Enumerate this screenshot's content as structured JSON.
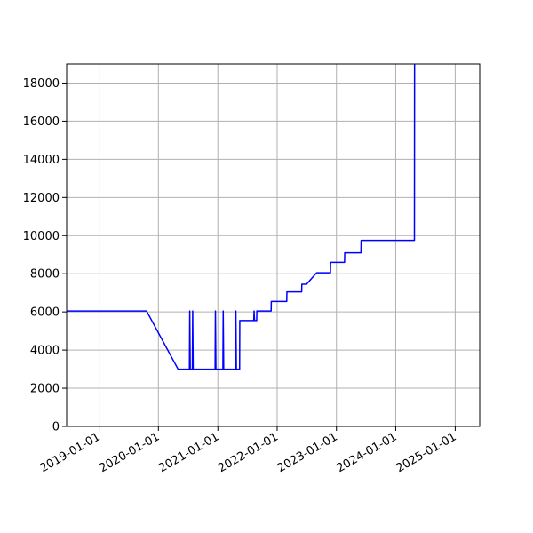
{
  "chart_data": {
    "type": "line",
    "title": "",
    "xlabel": "",
    "ylabel": "",
    "x_axis": {
      "type": "date",
      "range": [
        "2018-06-15",
        "2025-06-01"
      ]
    },
    "y_axis": {
      "range": [
        0,
        19000
      ]
    },
    "grid": true,
    "colors": {
      "line": "#0000ff",
      "grid": "#b0b0b0",
      "axis": "#000000"
    },
    "x_ticks": [
      {
        "value": "2019-01-01",
        "label": "2019-01-01"
      },
      {
        "value": "2020-01-01",
        "label": "2020-01-01"
      },
      {
        "value": "2021-01-01",
        "label": "2021-01-01"
      },
      {
        "value": "2022-01-01",
        "label": "2022-01-01"
      },
      {
        "value": "2023-01-01",
        "label": "2023-01-01"
      },
      {
        "value": "2024-01-01",
        "label": "2024-01-01"
      },
      {
        "value": "2025-01-01",
        "label": "2025-01-01"
      }
    ],
    "y_ticks": [
      {
        "value": 0,
        "label": "0"
      },
      {
        "value": 2000,
        "label": "2000"
      },
      {
        "value": 4000,
        "label": "4000"
      },
      {
        "value": 6000,
        "label": "6000"
      },
      {
        "value": 8000,
        "label": "8000"
      },
      {
        "value": 10000,
        "label": "10000"
      },
      {
        "value": 12000,
        "label": "12000"
      },
      {
        "value": 14000,
        "label": "14000"
      },
      {
        "value": 16000,
        "label": "16000"
      },
      {
        "value": 18000,
        "label": "18000"
      }
    ],
    "series": [
      {
        "points": [
          [
            "2018-06-15",
            6050
          ],
          [
            "2019-10-20",
            6050
          ],
          [
            "2020-05-01",
            3000
          ],
          [
            "2020-07-10",
            3000
          ],
          [
            "2020-07-12",
            6050
          ],
          [
            "2020-07-15",
            3000
          ],
          [
            "2020-07-28",
            3000
          ],
          [
            "2020-07-30",
            6050
          ],
          [
            "2020-08-02",
            3000
          ],
          [
            "2020-12-15",
            3000
          ],
          [
            "2020-12-17",
            6050
          ],
          [
            "2020-12-20",
            3000
          ],
          [
            "2021-02-01",
            3000
          ],
          [
            "2021-02-03",
            6050
          ],
          [
            "2021-02-06",
            3000
          ],
          [
            "2021-04-20",
            3000
          ],
          [
            "2021-04-22",
            6050
          ],
          [
            "2021-04-25",
            3000
          ],
          [
            "2021-05-15",
            3000
          ],
          [
            "2021-05-16",
            5550
          ],
          [
            "2021-08-10",
            5550
          ],
          [
            "2021-08-12",
            6050
          ],
          [
            "2021-08-15",
            5550
          ],
          [
            "2021-08-28",
            5550
          ],
          [
            "2021-08-29",
            6050
          ],
          [
            "2021-11-25",
            6050
          ],
          [
            "2021-11-26",
            6550
          ],
          [
            "2022-03-01",
            6550
          ],
          [
            "2022-03-02",
            7050
          ],
          [
            "2022-06-01",
            7050
          ],
          [
            "2022-06-02",
            7450
          ],
          [
            "2022-07-01",
            7450
          ],
          [
            "2022-09-01",
            8050
          ],
          [
            "2022-11-25",
            8050
          ],
          [
            "2022-11-26",
            8600
          ],
          [
            "2023-02-20",
            8600
          ],
          [
            "2023-02-21",
            9100
          ],
          [
            "2023-06-01",
            9100
          ],
          [
            "2023-06-02",
            9750
          ],
          [
            "2024-04-25",
            9750
          ],
          [
            "2024-04-26",
            19000
          ]
        ]
      }
    ]
  }
}
